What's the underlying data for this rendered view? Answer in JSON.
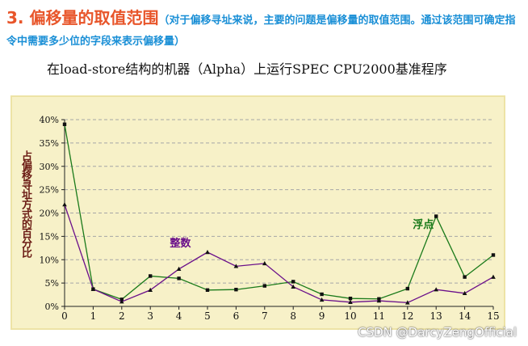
{
  "heading": {
    "main": "3. 偏移量的取值范围",
    "note": "（对于偏移寻址来说，主要的问题是偏移量的取值范围。通过该范围可确定指令中需要多少位的字段来表示偏移量）"
  },
  "subtitle": "在load-store结构的机器（Alpha）上运行SPEC CPU2000基准程序",
  "watermark": "CSDN @DarcyZengOfficial",
  "colors": {
    "chart_bg": "#f7f1c8",
    "grid": "#a6a6a6",
    "float_series": "#1a7a1a",
    "int_series": "#6a0f8a"
  },
  "chart_data": {
    "type": "line",
    "ylabel": "占偏移寻址方式的百分比",
    "xlabel": "",
    "x": [
      0,
      1,
      2,
      3,
      4,
      5,
      6,
      7,
      8,
      9,
      10,
      11,
      12,
      13,
      14,
      15
    ],
    "xticks": [
      "0",
      "1",
      "2",
      "3",
      "4",
      "5",
      "6",
      "7",
      "8",
      "9",
      "10",
      "11",
      "12",
      "13",
      "14",
      "15"
    ],
    "ylim": [
      0,
      40
    ],
    "yticks": [
      "0%",
      "5%",
      "10%",
      "15%",
      "20%",
      "25%",
      "30%",
      "35%",
      "40%"
    ],
    "grid": "horizontal dashed",
    "series": [
      {
        "name": "浮点",
        "color": "#1a7a1a",
        "values": [
          39,
          3.7,
          1.5,
          6.5,
          6.0,
          3.5,
          3.6,
          4.4,
          5.3,
          2.6,
          1.7,
          1.6,
          3.8,
          19.3,
          6.3,
          11.0
        ]
      },
      {
        "name": "整数",
        "color": "#6a0f8a",
        "values": [
          21.8,
          3.7,
          1.0,
          3.5,
          8.0,
          11.6,
          8.6,
          9.2,
          4.2,
          1.4,
          0.9,
          1.2,
          0.8,
          3.6,
          2.8,
          6.3
        ]
      }
    ]
  }
}
